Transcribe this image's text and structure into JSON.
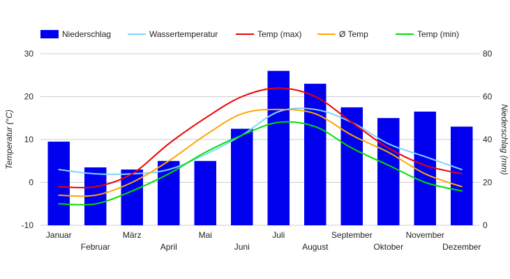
{
  "chart_data": {
    "type": "bar",
    "categories": [
      "Januar",
      "Februar",
      "März",
      "April",
      "Mai",
      "Juni",
      "Juli",
      "August",
      "September",
      "Oktober",
      "November",
      "Dezember"
    ],
    "y_left": {
      "label": "Temperatur (°C)",
      "range": [
        -10,
        30
      ],
      "ticks": [
        -10,
        0,
        10,
        20,
        30
      ]
    },
    "y_right": {
      "label": "Niederschlag (mm)",
      "range": [
        0,
        80
      ],
      "ticks": [
        0,
        20,
        40,
        60,
        80
      ]
    },
    "grid": true,
    "legend_position": "top-left",
    "series": [
      {
        "name": "Niederschlag",
        "kind": "bar",
        "axis": "right",
        "color": "#0000ee",
        "values": [
          39,
          27,
          26,
          30,
          30,
          45,
          72,
          66,
          55,
          50,
          53,
          46
        ]
      },
      {
        "name": "Wassertemperatur",
        "kind": "line",
        "axis": "left",
        "color": "#7fd4ff",
        "values": [
          3,
          2,
          2,
          3,
          6.5,
          11,
          16.5,
          17,
          14,
          9,
          6,
          3
        ]
      },
      {
        "name": "Temp (max)",
        "kind": "line",
        "axis": "left",
        "color": "#ee0000",
        "values": [
          -1,
          -1,
          2,
          9,
          15,
          20,
          22,
          20,
          14,
          8,
          4,
          2
        ]
      },
      {
        "name": "Ø Temp",
        "kind": "line",
        "axis": "left",
        "color": "#ffa500",
        "values": [
          -3,
          -3,
          0,
          5,
          11,
          16,
          17,
          16,
          11,
          7,
          2,
          -1
        ]
      },
      {
        "name": "Temp (min)",
        "kind": "line",
        "axis": "left",
        "color": "#00dd00",
        "values": [
          -5,
          -5,
          -2,
          2,
          7,
          11,
          14,
          13,
          8,
          4,
          0,
          -2
        ]
      }
    ]
  }
}
